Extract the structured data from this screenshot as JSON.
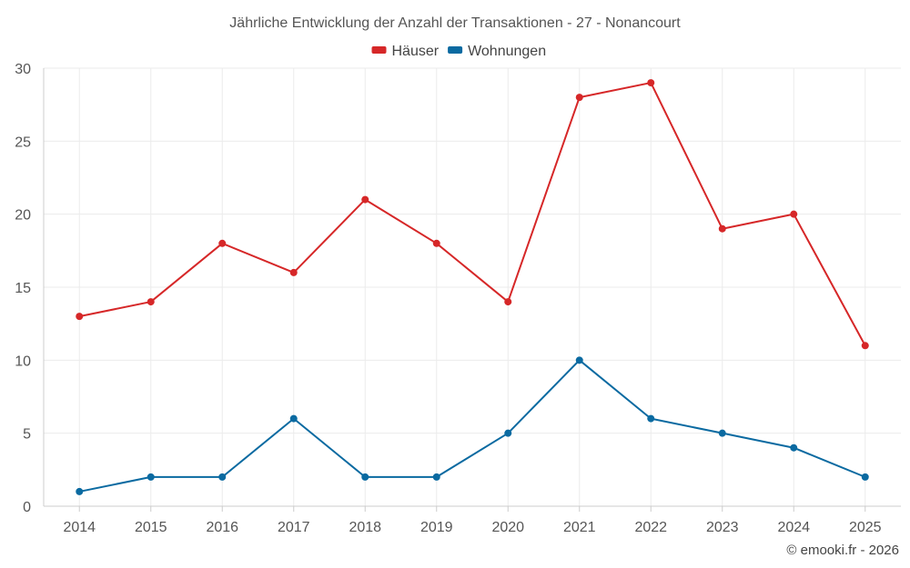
{
  "chart_data": {
    "type": "line",
    "title": "Jährliche Entwicklung der Anzahl der Transaktionen - 27 - Nonancourt",
    "categories": [
      "2014",
      "2015",
      "2016",
      "2017",
      "2018",
      "2019",
      "2020",
      "2021",
      "2022",
      "2023",
      "2024",
      "2025"
    ],
    "series": [
      {
        "name": "Häuser",
        "color": "#d62728",
        "values": [
          13,
          14,
          18,
          16,
          21,
          18,
          14,
          28,
          29,
          19,
          20,
          11
        ]
      },
      {
        "name": "Wohnungen",
        "color": "#0a6aa1",
        "values": [
          1,
          2,
          2,
          6,
          2,
          2,
          5,
          10,
          6,
          5,
          4,
          2
        ]
      }
    ],
    "ylim": [
      0,
      30
    ],
    "yticks": [
      0,
      5,
      10,
      15,
      20,
      25,
      30
    ],
    "xlabel": "",
    "ylabel": "",
    "grid": true,
    "legend": "top-center"
  },
  "credit": "© emooki.fr - 2026"
}
